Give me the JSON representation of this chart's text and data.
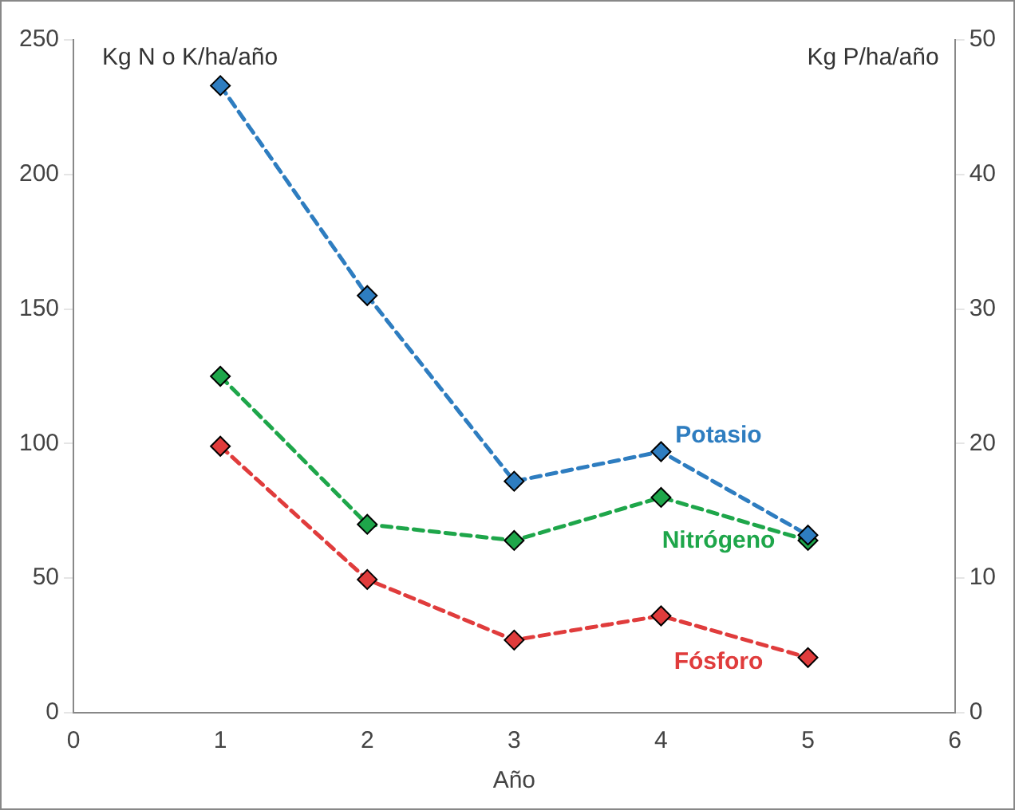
{
  "chart_data": {
    "type": "line",
    "xlabel": "Año",
    "ylabel": "Kg N o K/ha/año",
    "y2label": "Kg P/ha/año",
    "xlim": [
      0,
      6
    ],
    "xticks": [
      0,
      1,
      2,
      3,
      4,
      5,
      6
    ],
    "ylim": [
      0,
      250
    ],
    "yticks": [
      0,
      50,
      100,
      150,
      200,
      250
    ],
    "y2lim": [
      0,
      50
    ],
    "y2ticks": [
      0,
      10,
      20,
      30,
      40,
      50
    ],
    "x": [
      1,
      2,
      3,
      4,
      5
    ],
    "grid": false,
    "legend": false,
    "marker": "diamond",
    "line_style": "dashed",
    "series": [
      {
        "name": "Potasio",
        "color": "#2e7dc0",
        "values": [
          233,
          155,
          86,
          97,
          66
        ]
      },
      {
        "name": "Nitrógeno",
        "color": "#1ea64a",
        "values": [
          125,
          70,
          64,
          80,
          64
        ]
      },
      {
        "name": "Fósforo",
        "color": "#e03c3c",
        "axis": "y2",
        "values": [
          19.8,
          9.9,
          5.4,
          7.2,
          4.1
        ]
      }
    ]
  }
}
